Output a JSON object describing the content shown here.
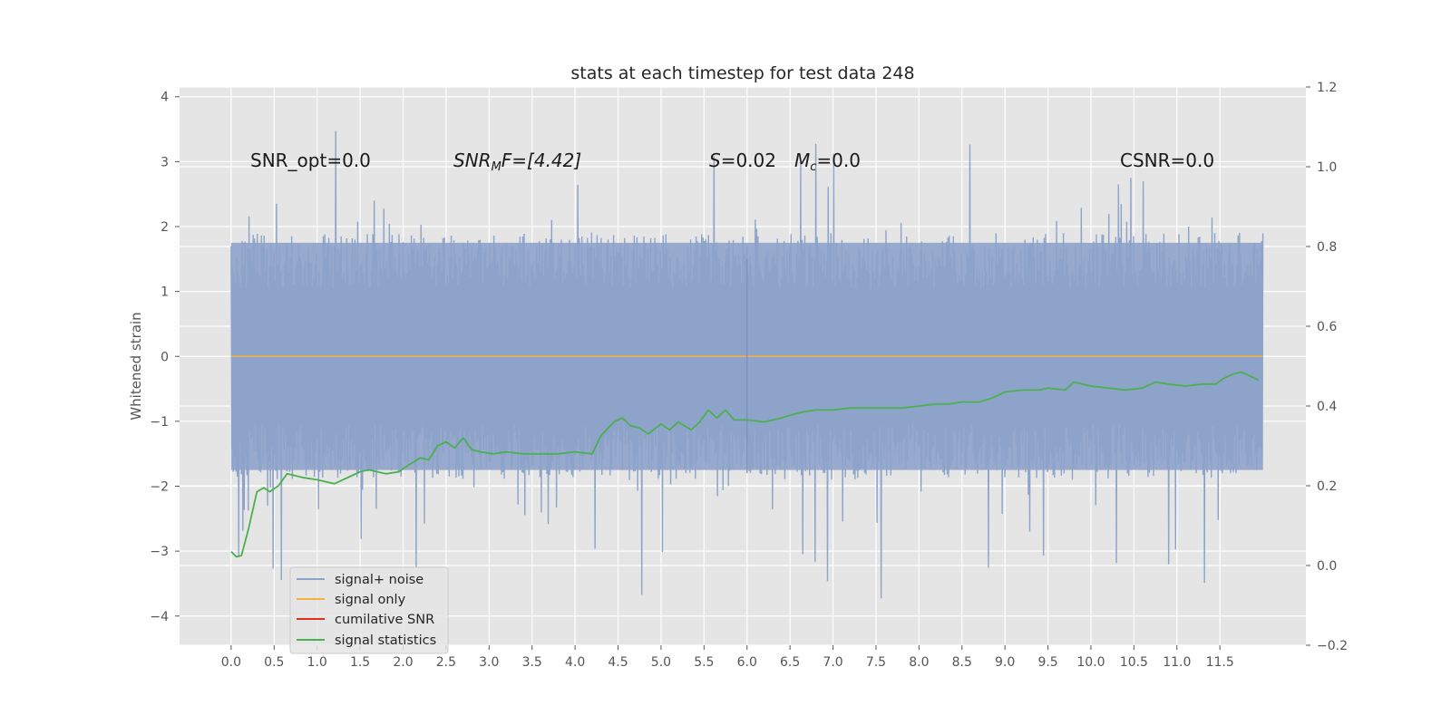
{
  "chart_data": {
    "type": "line",
    "title": "stats at each timestep for test data 248",
    "ylabel": "Whitened strain",
    "xlabel": "",
    "xlim": [
      -0.6,
      12.5
    ],
    "ylim": [
      -4.45,
      4.15
    ],
    "y2lim": [
      -0.2,
      1.2
    ],
    "grid": true,
    "legend_position": "lower-left",
    "x_ticks": [
      "0.0",
      "0.5",
      "1.0",
      "1.5",
      "2.0",
      "2.5",
      "3.0",
      "3.5",
      "4.0",
      "4.5",
      "5.0",
      "5.5",
      "6.0",
      "6.5",
      "7.0",
      "7.5",
      "8.0",
      "8.5",
      "9.0",
      "9.5",
      "10.0",
      "10.5",
      "11.0",
      "11.5"
    ],
    "y_ticks": [
      "4",
      "3",
      "2",
      "1",
      "0",
      "−1",
      "−2",
      "−3",
      "−4"
    ],
    "y2_ticks": [
      "1.2",
      "1.0",
      "0.8",
      "0.6",
      "0.4",
      "0.2",
      "0.0",
      "−0.2"
    ],
    "annotations": {
      "snr_opt": "SNR_opt=0.0",
      "snr_mf_main": "SNR",
      "snr_mf_sub": "M",
      "snr_mf_rest": "F=[4.42]",
      "s_italic": "S",
      "s_value": "=0.02",
      "mc_italic": "M",
      "mc_sub": "c",
      "mc_value": "=0.0",
      "csnr": "CSNR=0.0"
    },
    "series": [
      {
        "name": "signal+ noise",
        "axis": "left",
        "color": "#8ea3ca",
        "x_range": [
          0.0,
          12.0
        ],
        "typical_range": [
          -1.9,
          1.9
        ],
        "extreme_range": [
          -4.07,
          3.82
        ]
      },
      {
        "name": "signal only",
        "axis": "left",
        "color": "#f5b041",
        "x_range": [
          0.0,
          12.0
        ],
        "values_constant": 0.0,
        "spike": {
          "x": 6.0,
          "max": 1.5,
          "min": -1.8
        }
      },
      {
        "name": "cumilative SNR",
        "axis": "left",
        "color": "#e03020",
        "x": [],
        "y": []
      },
      {
        "name": "signal statistics",
        "axis": "right",
        "color": "#4caf50",
        "x": [
          0.0,
          0.06,
          0.12,
          0.2,
          0.3,
          0.38,
          0.45,
          0.55,
          0.65,
          0.75,
          0.85,
          1.0,
          1.2,
          1.4,
          1.5,
          1.6,
          1.7,
          1.8,
          1.95,
          2.05,
          2.2,
          2.3,
          2.4,
          2.5,
          2.6,
          2.7,
          2.8,
          2.9,
          3.05,
          3.2,
          3.4,
          3.6,
          3.8,
          4.0,
          4.2,
          4.3,
          4.45,
          4.55,
          4.65,
          4.75,
          4.85,
          5.0,
          5.1,
          5.2,
          5.35,
          5.45,
          5.55,
          5.65,
          5.75,
          5.85,
          6.0,
          6.2,
          6.4,
          6.55,
          6.65,
          6.8,
          7.0,
          7.2,
          7.5,
          7.8,
          8.0,
          8.2,
          8.35,
          8.5,
          8.7,
          8.85,
          9.0,
          9.2,
          9.4,
          9.5,
          9.7,
          9.8,
          9.9,
          10.0,
          10.2,
          10.4,
          10.6,
          10.75,
          10.9,
          11.1,
          11.3,
          11.45,
          11.55,
          11.65,
          11.75,
          11.85,
          11.95
        ],
        "y": [
          0.035,
          0.022,
          0.025,
          0.09,
          0.185,
          0.195,
          0.185,
          0.2,
          0.23,
          0.225,
          0.22,
          0.215,
          0.205,
          0.225,
          0.235,
          0.24,
          0.235,
          0.23,
          0.235,
          0.25,
          0.27,
          0.265,
          0.3,
          0.31,
          0.295,
          0.32,
          0.29,
          0.285,
          0.28,
          0.285,
          0.28,
          0.28,
          0.28,
          0.285,
          0.28,
          0.325,
          0.36,
          0.37,
          0.35,
          0.345,
          0.33,
          0.355,
          0.34,
          0.36,
          0.34,
          0.36,
          0.39,
          0.37,
          0.39,
          0.365,
          0.365,
          0.36,
          0.37,
          0.38,
          0.385,
          0.39,
          0.39,
          0.395,
          0.395,
          0.395,
          0.4,
          0.405,
          0.405,
          0.41,
          0.41,
          0.42,
          0.435,
          0.44,
          0.44,
          0.445,
          0.44,
          0.46,
          0.455,
          0.45,
          0.445,
          0.44,
          0.445,
          0.46,
          0.455,
          0.45,
          0.455,
          0.455,
          0.47,
          0.48,
          0.485,
          0.475,
          0.465
        ]
      }
    ]
  }
}
